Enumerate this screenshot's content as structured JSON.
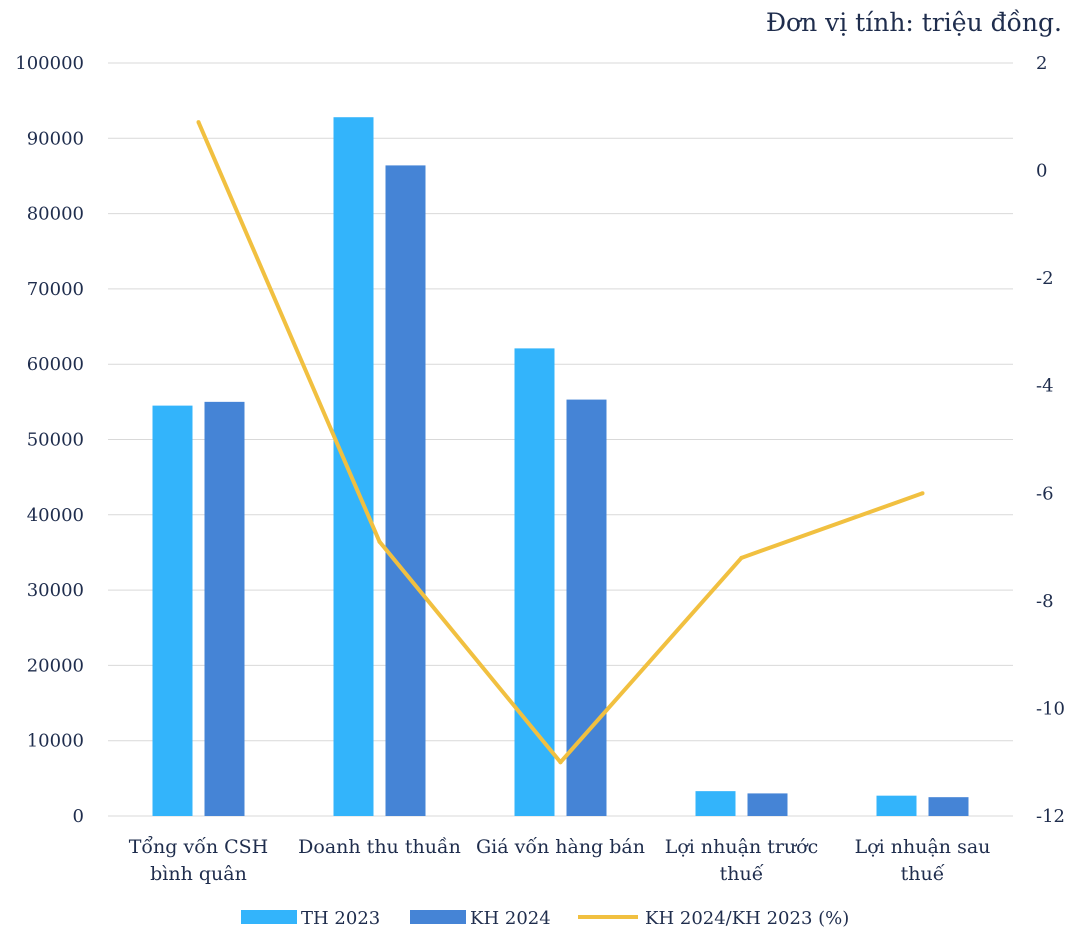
{
  "unit_note": "Đơn vị tính: triệu đồng.",
  "colors": {
    "series_th2023": "#33b4fb",
    "series_kh2024": "#4584d6",
    "series_ratio": "#f1c040",
    "grid": "#d9d9d9",
    "text": "#1f2d4d"
  },
  "chart_data": {
    "type": "bar",
    "categories": [
      [
        "Tổng vốn CSH",
        "bình quân"
      ],
      [
        "Doanh thu thuần"
      ],
      [
        "Giá vốn hàng bán"
      ],
      [
        "Lợi nhuận trước",
        "thuế"
      ],
      [
        "Lợi nhuận sau",
        "thuế"
      ]
    ],
    "series": [
      {
        "name": "TH 2023",
        "type": "bar",
        "axis": "left",
        "values": [
          54500,
          92800,
          62100,
          3300,
          2700
        ]
      },
      {
        "name": "KH 2024",
        "type": "bar",
        "axis": "left",
        "values": [
          55000,
          86400,
          55300,
          3000,
          2500
        ]
      },
      {
        "name": "KH 2024/KH 2023 (%)",
        "type": "line",
        "axis": "right",
        "values": [
          0.9,
          -6.9,
          -11.0,
          -7.2,
          -6.0
        ]
      }
    ],
    "y_left": {
      "min": 0,
      "max": 100000,
      "ticks": [
        0,
        10000,
        20000,
        30000,
        40000,
        50000,
        60000,
        70000,
        80000,
        90000,
        100000
      ]
    },
    "y_right": {
      "min": -12,
      "max": 2,
      "ticks": [
        -12,
        -10,
        -8,
        -6,
        -4,
        -2,
        0,
        2
      ]
    },
    "grid": true,
    "legend_position": "bottom"
  }
}
